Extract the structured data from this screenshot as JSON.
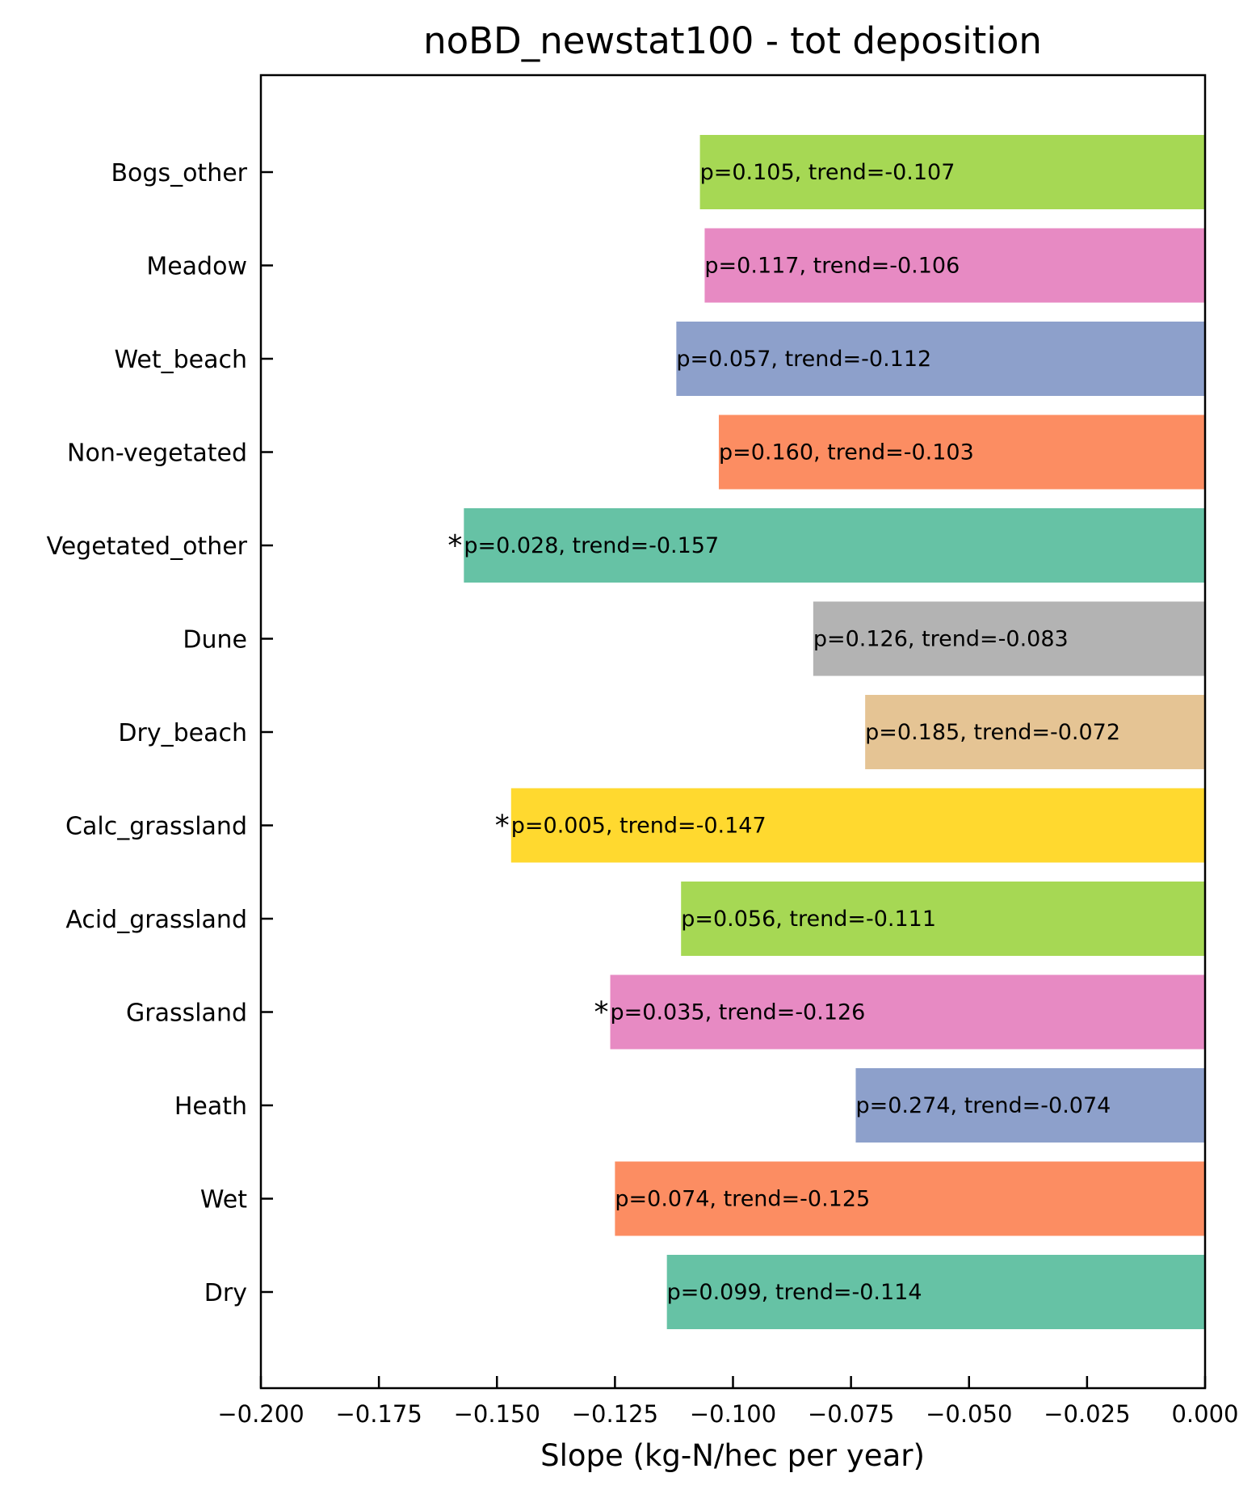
{
  "chart_data": {
    "type": "bar",
    "orientation": "horizontal",
    "title": "noBD_newstat100 - tot deposition",
    "xlabel": "Slope (kg-N/hec per year)",
    "ylabel": "",
    "xlim": [
      -0.2,
      0.0
    ],
    "xticks": [
      -0.2,
      -0.175,
      -0.15,
      -0.125,
      -0.1,
      -0.075,
      -0.05,
      -0.025,
      0.0
    ],
    "xtick_labels": [
      "−0.200",
      "−0.175",
      "−0.150",
      "−0.125",
      "−0.100",
      "−0.075",
      "−0.050",
      "−0.025",
      "0.000"
    ],
    "grid": false,
    "legend": "none",
    "categories": [
      "Bogs_other",
      "Meadow",
      "Wet_beach",
      "Non-vegetated",
      "Vegetated_other",
      "Dune",
      "Dry_beach",
      "Calc_grassland",
      "Acid_grassland",
      "Grassland",
      "Heath",
      "Wet",
      "Dry"
    ],
    "values": [
      -0.107,
      -0.106,
      -0.112,
      -0.103,
      -0.157,
      -0.083,
      -0.072,
      -0.147,
      -0.111,
      -0.126,
      -0.074,
      -0.125,
      -0.114
    ],
    "bar_labels": [
      "p=0.105, trend=-0.107",
      "p=0.117, trend=-0.106",
      "p=0.057, trend=-0.112",
      "p=0.160, trend=-0.103",
      "p=0.028, trend=-0.157",
      "p=0.126, trend=-0.083",
      "p=0.185, trend=-0.072",
      "p=0.005, trend=-0.147",
      "p=0.056, trend=-0.111",
      "p=0.035, trend=-0.126",
      "p=0.274, trend=-0.074",
      "p=0.074, trend=-0.125",
      "p=0.099, trend=-0.114"
    ],
    "significance_marks": [
      "",
      "",
      "",
      "",
      "*",
      "",
      "",
      "*",
      "",
      "*",
      "",
      "",
      ""
    ],
    "colors": [
      "#a6d854",
      "#e78ac3",
      "#8da0cb",
      "#fc8d62",
      "#66c2a5",
      "#b3b3b3",
      "#e5c494",
      "#ffd92f",
      "#a6d854",
      "#e78ac3",
      "#8da0cb",
      "#fc8d62",
      "#66c2a5"
    ]
  }
}
